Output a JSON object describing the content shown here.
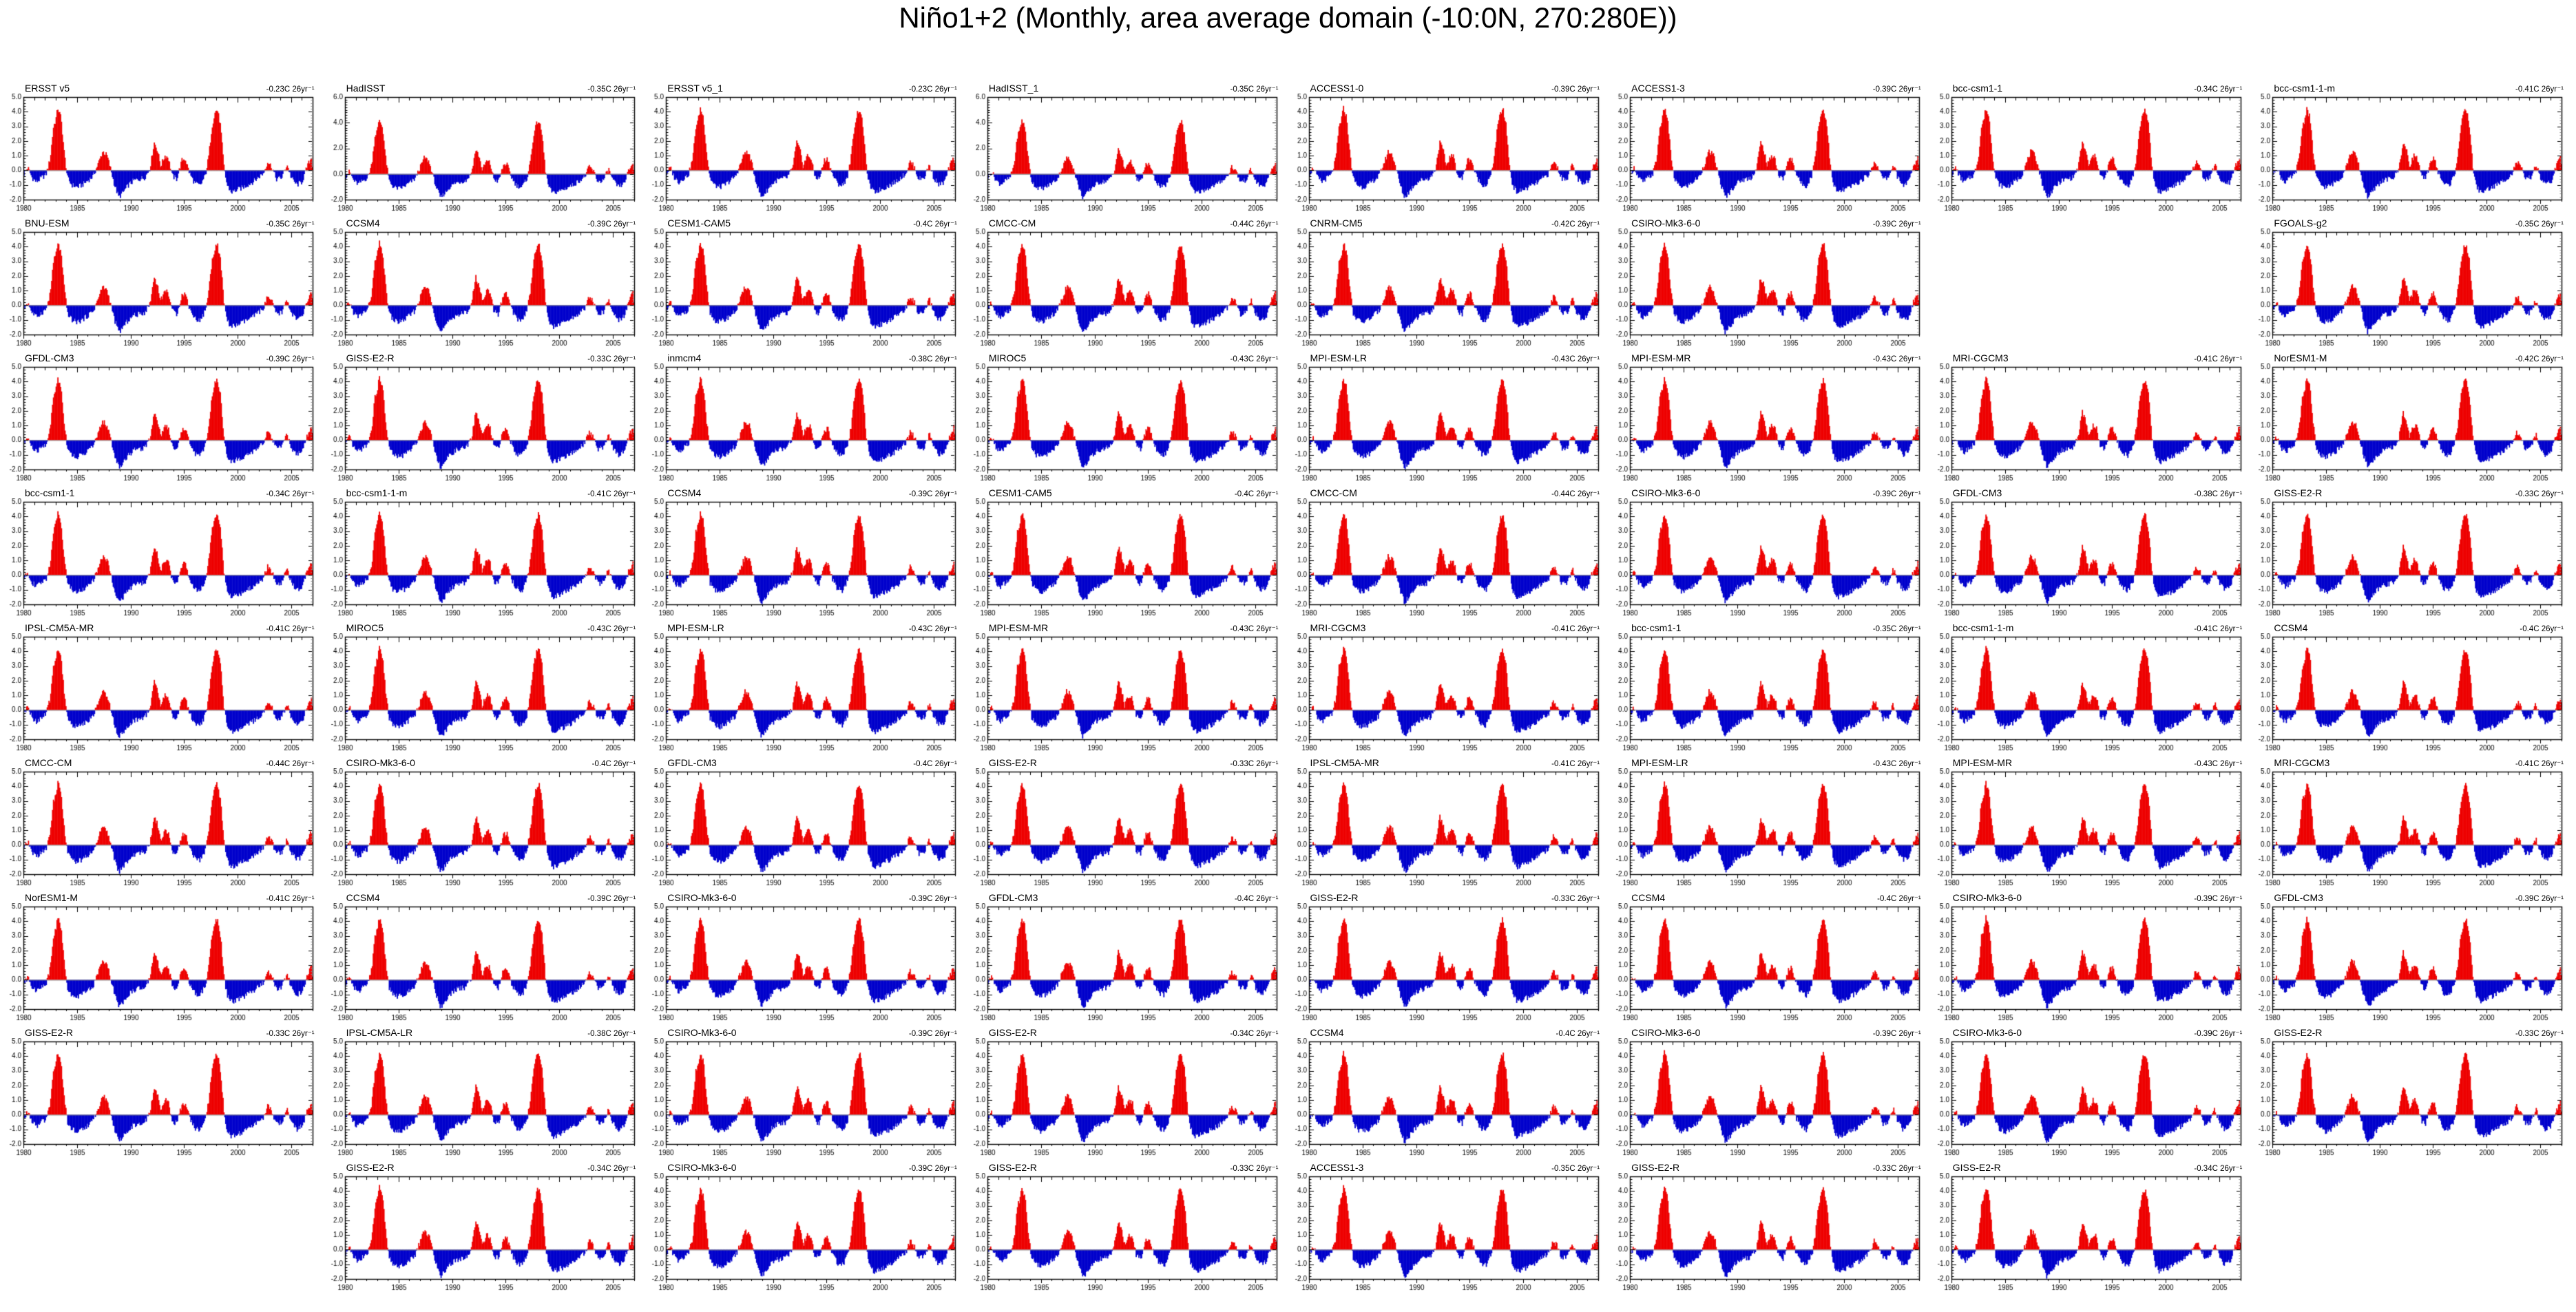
{
  "title": "Niño1+2 (Monthly, area average domain (-10:0N, 270:280E))",
  "chart_data": {
    "type": "bar",
    "description": "Grid of 69 small-multiple panels of monthly Niño1+2 SST anomaly time series (°C), red bars positive anomalies, blue bars negative anomalies, 1980–2006. Each panel lists a model/observation name (top-left) and its linear trend (top-right).",
    "x_range": [
      1980,
      2007
    ],
    "x_tick_labels": [
      "1980",
      "1985",
      "1990",
      "1995",
      "2000",
      "2005"
    ],
    "y_tick_labels_default": [
      "5.0",
      "4.0",
      "3.0",
      "2.0",
      "1.0",
      "0.0",
      "-1.0",
      "-2.0"
    ],
    "y_tick_labels_hadisst": [
      "6.0",
      "4.0",
      "2.0",
      "0.0",
      "-2.0"
    ],
    "ylim_default": [
      -2.0,
      5.0
    ],
    "ylim_hadisst": [
      -2.0,
      6.0
    ],
    "xlabel": "",
    "ylabel": "",
    "grid": false,
    "legend": "none",
    "colors": {
      "positive": "#ee0000",
      "negative": "#0000cc",
      "zero_line": "#888888",
      "axis": "#000000"
    },
    "series_breakpoints": [
      [
        1980.0,
        -0.3
      ],
      [
        1980.4,
        0.2
      ],
      [
        1980.8,
        -0.5
      ],
      [
        1981.2,
        -0.8
      ],
      [
        1981.7,
        -0.5
      ],
      [
        1982.1,
        -0.3
      ],
      [
        1982.5,
        0.8
      ],
      [
        1982.8,
        3.0
      ],
      [
        1983.0,
        3.4
      ],
      [
        1983.2,
        4.25
      ],
      [
        1983.5,
        3.6
      ],
      [
        1983.8,
        1.2
      ],
      [
        1984.1,
        -0.5
      ],
      [
        1984.5,
        -1.0
      ],
      [
        1985.0,
        -1.15
      ],
      [
        1985.5,
        -1.0
      ],
      [
        1986.0,
        -0.7
      ],
      [
        1986.5,
        -0.4
      ],
      [
        1987.0,
        0.5
      ],
      [
        1987.4,
        1.3
      ],
      [
        1987.8,
        1.0
      ],
      [
        1988.1,
        0.2
      ],
      [
        1988.5,
        -1.0
      ],
      [
        1988.9,
        -1.85
      ],
      [
        1989.3,
        -1.5
      ],
      [
        1989.8,
        -1.0
      ],
      [
        1990.3,
        -0.7
      ],
      [
        1990.8,
        -0.6
      ],
      [
        1991.3,
        -0.5
      ],
      [
        1991.8,
        0.1
      ],
      [
        1992.2,
        1.9
      ],
      [
        1992.5,
        1.4
      ],
      [
        1992.8,
        0.3
      ],
      [
        1993.2,
        1.0
      ],
      [
        1993.5,
        0.9
      ],
      [
        1993.9,
        -0.4
      ],
      [
        1994.3,
        -0.6
      ],
      [
        1994.8,
        0.7
      ],
      [
        1995.1,
        0.8
      ],
      [
        1995.5,
        -0.2
      ],
      [
        1996.0,
        -0.9
      ],
      [
        1996.5,
        -1.05
      ],
      [
        1997.0,
        -0.3
      ],
      [
        1997.3,
        1.0
      ],
      [
        1997.6,
        3.0
      ],
      [
        1997.9,
        4.0
      ],
      [
        1998.1,
        4.15
      ],
      [
        1998.4,
        3.0
      ],
      [
        1998.7,
        0.3
      ],
      [
        1999.0,
        -1.0
      ],
      [
        1999.4,
        -1.5
      ],
      [
        1999.9,
        -1.35
      ],
      [
        2000.4,
        -1.2
      ],
      [
        2000.9,
        -1.0
      ],
      [
        2001.4,
        -0.8
      ],
      [
        2001.9,
        -0.5
      ],
      [
        2002.4,
        -0.2
      ],
      [
        2002.8,
        0.6
      ],
      [
        2003.2,
        0.2
      ],
      [
        2003.6,
        -0.6
      ],
      [
        2004.1,
        -0.5
      ],
      [
        2004.6,
        0.4
      ],
      [
        2005.0,
        -0.5
      ],
      [
        2005.5,
        -1.0
      ],
      [
        2006.0,
        -0.8
      ],
      [
        2006.5,
        0.3
      ],
      [
        2006.9,
        0.9
      ],
      [
        2007.0,
        0.0
      ]
    ]
  },
  "panels": [
    {
      "r": 1,
      "c": 1,
      "label": "ERSST v5",
      "trend": "-0.23C 26yr⁻¹",
      "ymax": 5
    },
    {
      "r": 1,
      "c": 2,
      "label": "HadISST",
      "trend": "-0.35C 26yr⁻¹",
      "ymax": 6
    },
    {
      "r": 1,
      "c": 3,
      "label": "ERSST v5_1",
      "trend": "-0.23C 26yr⁻¹",
      "ymax": 5
    },
    {
      "r": 1,
      "c": 4,
      "label": "HadISST_1",
      "trend": "-0.35C 26yr⁻¹",
      "ymax": 6
    },
    {
      "r": 1,
      "c": 5,
      "label": "ACCESS1-0",
      "trend": "-0.39C 26yr⁻¹",
      "ymax": 5
    },
    {
      "r": 1,
      "c": 6,
      "label": "ACCESS1-3",
      "trend": "-0.39C 26yr⁻¹",
      "ymax": 5
    },
    {
      "r": 1,
      "c": 7,
      "label": "bcc-csm1-1",
      "trend": "-0.34C 26yr⁻¹",
      "ymax": 5
    },
    {
      "r": 1,
      "c": 8,
      "label": "bcc-csm1-1-m",
      "trend": "-0.41C 26yr⁻¹",
      "ymax": 5
    },
    {
      "r": 2,
      "c": 1,
      "label": "BNU-ESM",
      "trend": "-0.35C 26yr⁻¹",
      "ymax": 5
    },
    {
      "r": 2,
      "c": 2,
      "label": "CCSM4",
      "trend": "-0.39C 26yr⁻¹",
      "ymax": 5
    },
    {
      "r": 2,
      "c": 3,
      "label": "CESM1-CAM5",
      "trend": "-0.4C 26yr⁻¹",
      "ymax": 5
    },
    {
      "r": 2,
      "c": 4,
      "label": "CMCC-CM",
      "trend": "-0.44C 26yr⁻¹",
      "ymax": 5
    },
    {
      "r": 2,
      "c": 5,
      "label": "CNRM-CM5",
      "trend": "-0.42C 26yr⁻¹",
      "ymax": 5
    },
    {
      "r": 2,
      "c": 6,
      "label": "CSIRO-Mk3-6-0",
      "trend": "-0.39C 26yr⁻¹",
      "ymax": 5
    },
    {
      "r": 2,
      "c": 8,
      "label": "FGOALS-g2",
      "trend": "-0.35C 26yr⁻¹",
      "ymax": 5
    },
    {
      "r": 3,
      "c": 1,
      "label": "GFDL-CM3",
      "trend": "-0.39C 26yr⁻¹",
      "ymax": 5
    },
    {
      "r": 3,
      "c": 2,
      "label": "GISS-E2-R",
      "trend": "-0.33C 26yr⁻¹",
      "ymax": 5
    },
    {
      "r": 3,
      "c": 3,
      "label": "inmcm4",
      "trend": "-0.38C 26yr⁻¹",
      "ymax": 5
    },
    {
      "r": 3,
      "c": 4,
      "label": "MIROC5",
      "trend": "-0.43C 26yr⁻¹",
      "ymax": 5
    },
    {
      "r": 3,
      "c": 5,
      "label": "MPI-ESM-LR",
      "trend": "-0.43C 26yr⁻¹",
      "ymax": 5
    },
    {
      "r": 3,
      "c": 6,
      "label": "MPI-ESM-MR",
      "trend": "-0.43C 26yr⁻¹",
      "ymax": 5
    },
    {
      "r": 3,
      "c": 7,
      "label": "MRI-CGCM3",
      "trend": "-0.41C 26yr⁻¹",
      "ymax": 5
    },
    {
      "r": 3,
      "c": 8,
      "label": "NorESM1-M",
      "trend": "-0.42C 26yr⁻¹",
      "ymax": 5
    },
    {
      "r": 4,
      "c": 1,
      "label": "bcc-csm1-1",
      "trend": "-0.34C 26yr⁻¹",
      "ymax": 5
    },
    {
      "r": 4,
      "c": 2,
      "label": "bcc-csm1-1-m",
      "trend": "-0.41C 26yr⁻¹",
      "ymax": 5
    },
    {
      "r": 4,
      "c": 3,
      "label": "CCSM4",
      "trend": "-0.39C 26yr⁻¹",
      "ymax": 5
    },
    {
      "r": 4,
      "c": 4,
      "label": "CESM1-CAM5",
      "trend": "-0.4C 26yr⁻¹",
      "ymax": 5
    },
    {
      "r": 4,
      "c": 5,
      "label": "CMCC-CM",
      "trend": "-0.44C 26yr⁻¹",
      "ymax": 5
    },
    {
      "r": 4,
      "c": 6,
      "label": "CSIRO-Mk3-6-0",
      "trend": "-0.39C 26yr⁻¹",
      "ymax": 5
    },
    {
      "r": 4,
      "c": 7,
      "label": "GFDL-CM3",
      "trend": "-0.38C 26yr⁻¹",
      "ymax": 5
    },
    {
      "r": 4,
      "c": 8,
      "label": "GISS-E2-R",
      "trend": "-0.33C 26yr⁻¹",
      "ymax": 5
    },
    {
      "r": 5,
      "c": 1,
      "label": "IPSL-CM5A-MR",
      "trend": "-0.41C 26yr⁻¹",
      "ymax": 5
    },
    {
      "r": 5,
      "c": 2,
      "label": "MIROC5",
      "trend": "-0.43C 26yr⁻¹",
      "ymax": 5
    },
    {
      "r": 5,
      "c": 3,
      "label": "MPI-ESM-LR",
      "trend": "-0.43C 26yr⁻¹",
      "ymax": 5
    },
    {
      "r": 5,
      "c": 4,
      "label": "MPI-ESM-MR",
      "trend": "-0.43C 26yr⁻¹",
      "ymax": 5
    },
    {
      "r": 5,
      "c": 5,
      "label": "MRI-CGCM3",
      "trend": "-0.41C 26yr⁻¹",
      "ymax": 5
    },
    {
      "r": 5,
      "c": 6,
      "label": "bcc-csm1-1",
      "trend": "-0.35C 26yr⁻¹",
      "ymax": 5
    },
    {
      "r": 5,
      "c": 7,
      "label": "bcc-csm1-1-m",
      "trend": "-0.41C 26yr⁻¹",
      "ymax": 5
    },
    {
      "r": 5,
      "c": 8,
      "label": "CCSM4",
      "trend": "-0.4C 26yr⁻¹",
      "ymax": 5
    },
    {
      "r": 6,
      "c": 1,
      "label": "CMCC-CM",
      "trend": "-0.44C 26yr⁻¹",
      "ymax": 5
    },
    {
      "r": 6,
      "c": 2,
      "label": "CSIRO-Mk3-6-0",
      "trend": "-0.4C 26yr⁻¹",
      "ymax": 5
    },
    {
      "r": 6,
      "c": 3,
      "label": "GFDL-CM3",
      "trend": "-0.4C 26yr⁻¹",
      "ymax": 5
    },
    {
      "r": 6,
      "c": 4,
      "label": "GISS-E2-R",
      "trend": "-0.33C 26yr⁻¹",
      "ymax": 5
    },
    {
      "r": 6,
      "c": 5,
      "label": "IPSL-CM5A-MR",
      "trend": "-0.41C 26yr⁻¹",
      "ymax": 5
    },
    {
      "r": 6,
      "c": 6,
      "label": "MPI-ESM-LR",
      "trend": "-0.43C 26yr⁻¹",
      "ymax": 5
    },
    {
      "r": 6,
      "c": 7,
      "label": "MPI-ESM-MR",
      "trend": "-0.43C 26yr⁻¹",
      "ymax": 5
    },
    {
      "r": 6,
      "c": 8,
      "label": "MRI-CGCM3",
      "trend": "-0.41C 26yr⁻¹",
      "ymax": 5
    },
    {
      "r": 7,
      "c": 1,
      "label": "NorESM1-M",
      "trend": "-0.41C 26yr⁻¹",
      "ymax": 5
    },
    {
      "r": 7,
      "c": 2,
      "label": "CCSM4",
      "trend": "-0.39C 26yr⁻¹",
      "ymax": 5
    },
    {
      "r": 7,
      "c": 3,
      "label": "CSIRO-Mk3-6-0",
      "trend": "-0.39C 26yr⁻¹",
      "ymax": 5
    },
    {
      "r": 7,
      "c": 4,
      "label": "GFDL-CM3",
      "trend": "-0.4C 26yr⁻¹",
      "ymax": 5
    },
    {
      "r": 7,
      "c": 5,
      "label": "GISS-E2-R",
      "trend": "-0.33C 26yr⁻¹",
      "ymax": 5
    },
    {
      "r": 7,
      "c": 6,
      "label": "CCSM4",
      "trend": "-0.4C 26yr⁻¹",
      "ymax": 5
    },
    {
      "r": 7,
      "c": 7,
      "label": "CSIRO-Mk3-6-0",
      "trend": "-0.39C 26yr⁻¹",
      "ymax": 5
    },
    {
      "r": 7,
      "c": 8,
      "label": "GFDL-CM3",
      "trend": "-0.39C 26yr⁻¹",
      "ymax": 5
    },
    {
      "r": 8,
      "c": 1,
      "label": "GISS-E2-R",
      "trend": "-0.33C 26yr⁻¹",
      "ymax": 5
    },
    {
      "r": 8,
      "c": 2,
      "label": "IPSL-CM5A-LR",
      "trend": "-0.38C 26yr⁻¹",
      "ymax": 5
    },
    {
      "r": 8,
      "c": 3,
      "label": "CSIRO-Mk3-6-0",
      "trend": "-0.39C 26yr⁻¹",
      "ymax": 5
    },
    {
      "r": 8,
      "c": 4,
      "label": "GISS-E2-R",
      "trend": "-0.34C 26yr⁻¹",
      "ymax": 5
    },
    {
      "r": 8,
      "c": 5,
      "label": "CCSM4",
      "trend": "-0.4C 26yr⁻¹",
      "ymax": 5
    },
    {
      "r": 8,
      "c": 6,
      "label": "CSIRO-Mk3-6-0",
      "trend": "-0.39C 26yr⁻¹",
      "ymax": 5
    },
    {
      "r": 8,
      "c": 7,
      "label": "CSIRO-Mk3-6-0",
      "trend": "-0.39C 26yr⁻¹",
      "ymax": 5
    },
    {
      "r": 8,
      "c": 8,
      "label": "GISS-E2-R",
      "trend": "-0.33C 26yr⁻¹",
      "ymax": 5
    },
    {
      "r": 9,
      "c": 2,
      "label": "GISS-E2-R",
      "trend": "-0.34C 26yr⁻¹",
      "ymax": 5
    },
    {
      "r": 9,
      "c": 3,
      "label": "CSIRO-Mk3-6-0",
      "trend": "-0.39C 26yr⁻¹",
      "ymax": 5
    },
    {
      "r": 9,
      "c": 4,
      "label": "GISS-E2-R",
      "trend": "-0.33C 26yr⁻¹",
      "ymax": 5
    },
    {
      "r": 9,
      "c": 5,
      "label": "ACCESS1-3",
      "trend": "-0.35C 26yr⁻¹",
      "ymax": 5
    },
    {
      "r": 9,
      "c": 6,
      "label": "GISS-E2-R",
      "trend": "-0.33C 26yr⁻¹",
      "ymax": 5
    },
    {
      "r": 9,
      "c": 7,
      "label": "GISS-E2-R",
      "trend": "-0.34C 26yr⁻¹",
      "ymax": 5
    }
  ]
}
